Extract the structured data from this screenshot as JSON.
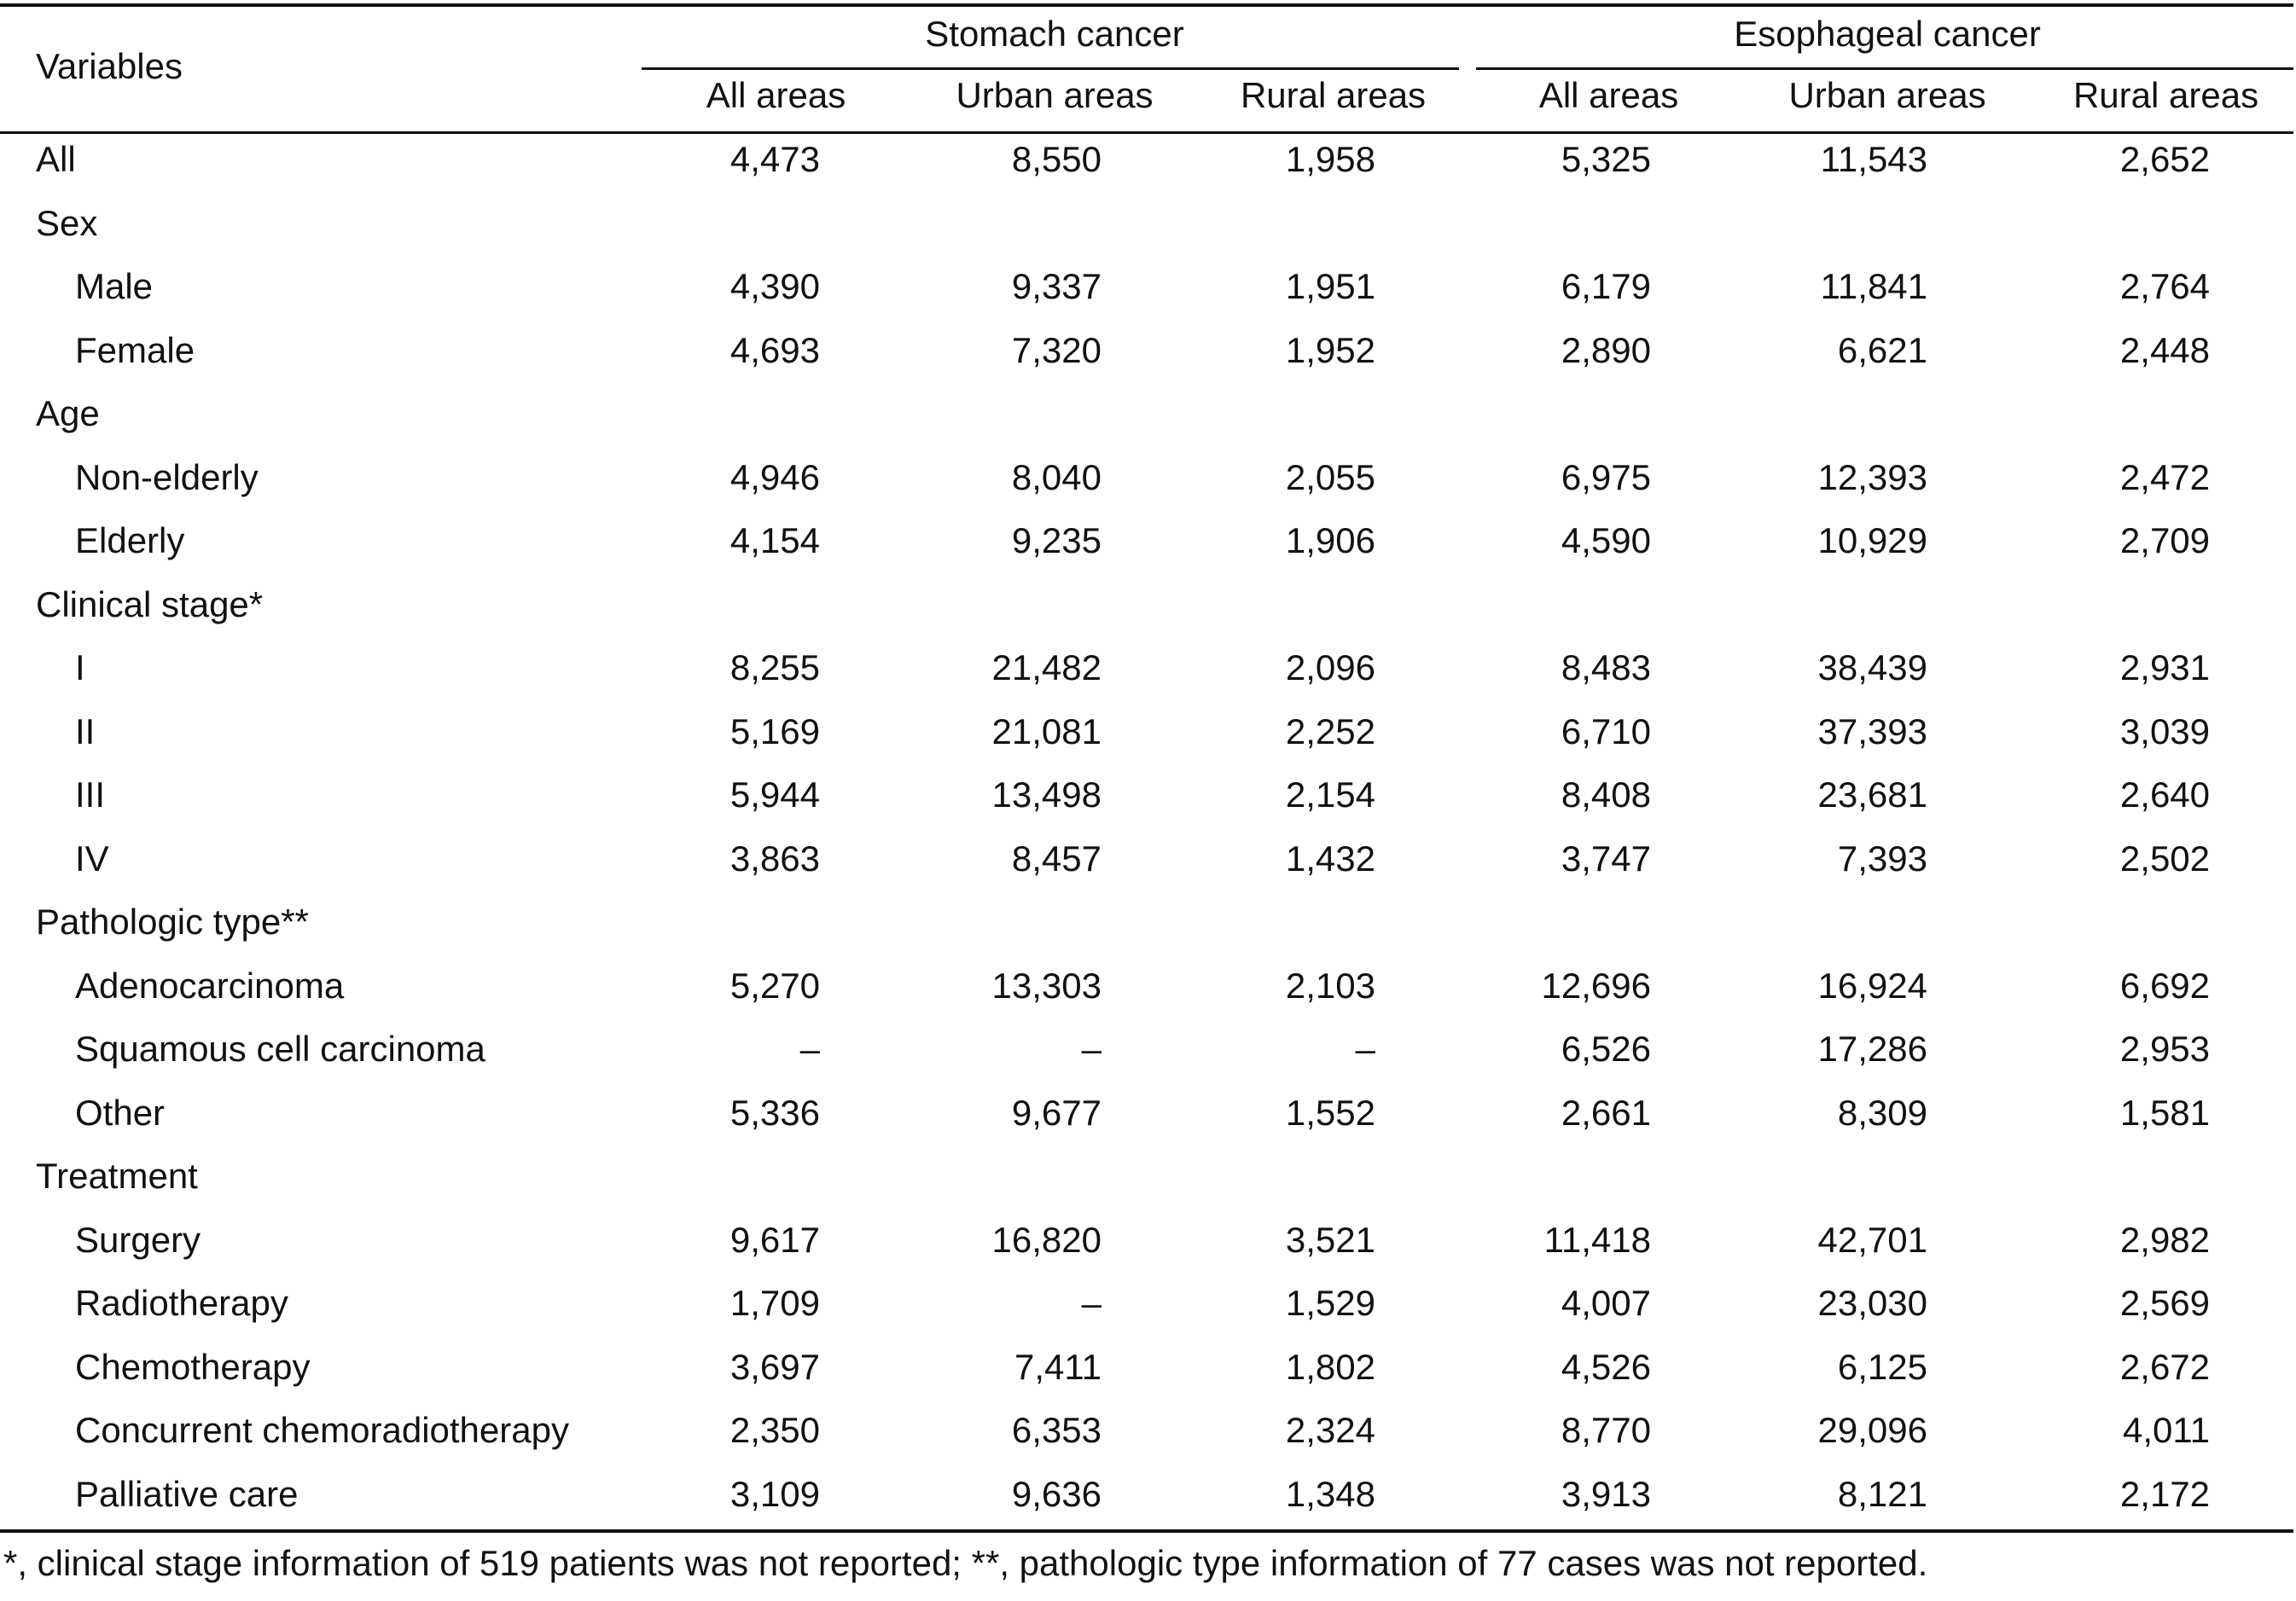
{
  "header": {
    "variables_label": "Variables",
    "groups": [
      {
        "label": "Stomach cancer",
        "subcolumns": [
          "All areas",
          "Urban areas",
          "Rural areas"
        ]
      },
      {
        "label": "Esophageal cancer",
        "subcolumns": [
          "All areas",
          "Urban areas",
          "Rural areas"
        ]
      }
    ]
  },
  "rows": [
    {
      "label": "All",
      "indent": false,
      "values": [
        "4,473",
        "8,550",
        "1,958",
        "5,325",
        "11,543",
        "2,652"
      ]
    },
    {
      "label": "Sex",
      "indent": false,
      "values": [
        "",
        "",
        "",
        "",
        "",
        ""
      ]
    },
    {
      "label": "Male",
      "indent": true,
      "values": [
        "4,390",
        "9,337",
        "1,951",
        "6,179",
        "11,841",
        "2,764"
      ]
    },
    {
      "label": "Female",
      "indent": true,
      "values": [
        "4,693",
        "7,320",
        "1,952",
        "2,890",
        "6,621",
        "2,448"
      ]
    },
    {
      "label": "Age",
      "indent": false,
      "values": [
        "",
        "",
        "",
        "",
        "",
        ""
      ]
    },
    {
      "label": "Non-elderly",
      "indent": true,
      "values": [
        "4,946",
        "8,040",
        "2,055",
        "6,975",
        "12,393",
        "2,472"
      ]
    },
    {
      "label": "Elderly",
      "indent": true,
      "values": [
        "4,154",
        "9,235",
        "1,906",
        "4,590",
        "10,929",
        "2,709"
      ]
    },
    {
      "label": "Clinical stage*",
      "indent": false,
      "values": [
        "",
        "",
        "",
        "",
        "",
        ""
      ]
    },
    {
      "label": "I",
      "indent": true,
      "values": [
        "8,255",
        "21,482",
        "2,096",
        "8,483",
        "38,439",
        "2,931"
      ]
    },
    {
      "label": "II",
      "indent": true,
      "values": [
        "5,169",
        "21,081",
        "2,252",
        "6,710",
        "37,393",
        "3,039"
      ]
    },
    {
      "label": "III",
      "indent": true,
      "values": [
        "5,944",
        "13,498",
        "2,154",
        "8,408",
        "23,681",
        "2,640"
      ]
    },
    {
      "label": "IV",
      "indent": true,
      "values": [
        "3,863",
        "8,457",
        "1,432",
        "3,747",
        "7,393",
        "2,502"
      ]
    },
    {
      "label": "Pathologic type**",
      "indent": false,
      "values": [
        "",
        "",
        "",
        "",
        "",
        ""
      ]
    },
    {
      "label": "Adenocarcinoma",
      "indent": true,
      "values": [
        "5,270",
        "13,303",
        "2,103",
        "12,696",
        "16,924",
        "6,692"
      ]
    },
    {
      "label": "Squamous cell carcinoma",
      "indent": true,
      "values": [
        "–",
        "–",
        "–",
        "6,526",
        "17,286",
        "2,953"
      ]
    },
    {
      "label": "Other",
      "indent": true,
      "values": [
        "5,336",
        "9,677",
        "1,552",
        "2,661",
        "8,309",
        "1,581"
      ]
    },
    {
      "label": "Treatment",
      "indent": false,
      "values": [
        "",
        "",
        "",
        "",
        "",
        ""
      ]
    },
    {
      "label": "Surgery",
      "indent": true,
      "values": [
        "9,617",
        "16,820",
        "3,521",
        "11,418",
        "42,701",
        "2,982"
      ]
    },
    {
      "label": "Radiotherapy",
      "indent": true,
      "values": [
        "1,709",
        "–",
        "1,529",
        "4,007",
        "23,030",
        "2,569"
      ]
    },
    {
      "label": "Chemotherapy",
      "indent": true,
      "values": [
        "3,697",
        "7,411",
        "1,802",
        "4,526",
        "6,125",
        "2,672"
      ]
    },
    {
      "label": "Concurrent chemoradiotherapy",
      "indent": true,
      "values": [
        "2,350",
        "6,353",
        "2,324",
        "8,770",
        "29,096",
        "4,011"
      ]
    },
    {
      "label": "Palliative care",
      "indent": true,
      "values": [
        "3,109",
        "9,636",
        "1,348",
        "3,913",
        "8,121",
        "2,172"
      ]
    }
  ],
  "footnote": "*, clinical stage information of 519 patients was not reported; **, pathologic type information of 77 cases was not reported."
}
